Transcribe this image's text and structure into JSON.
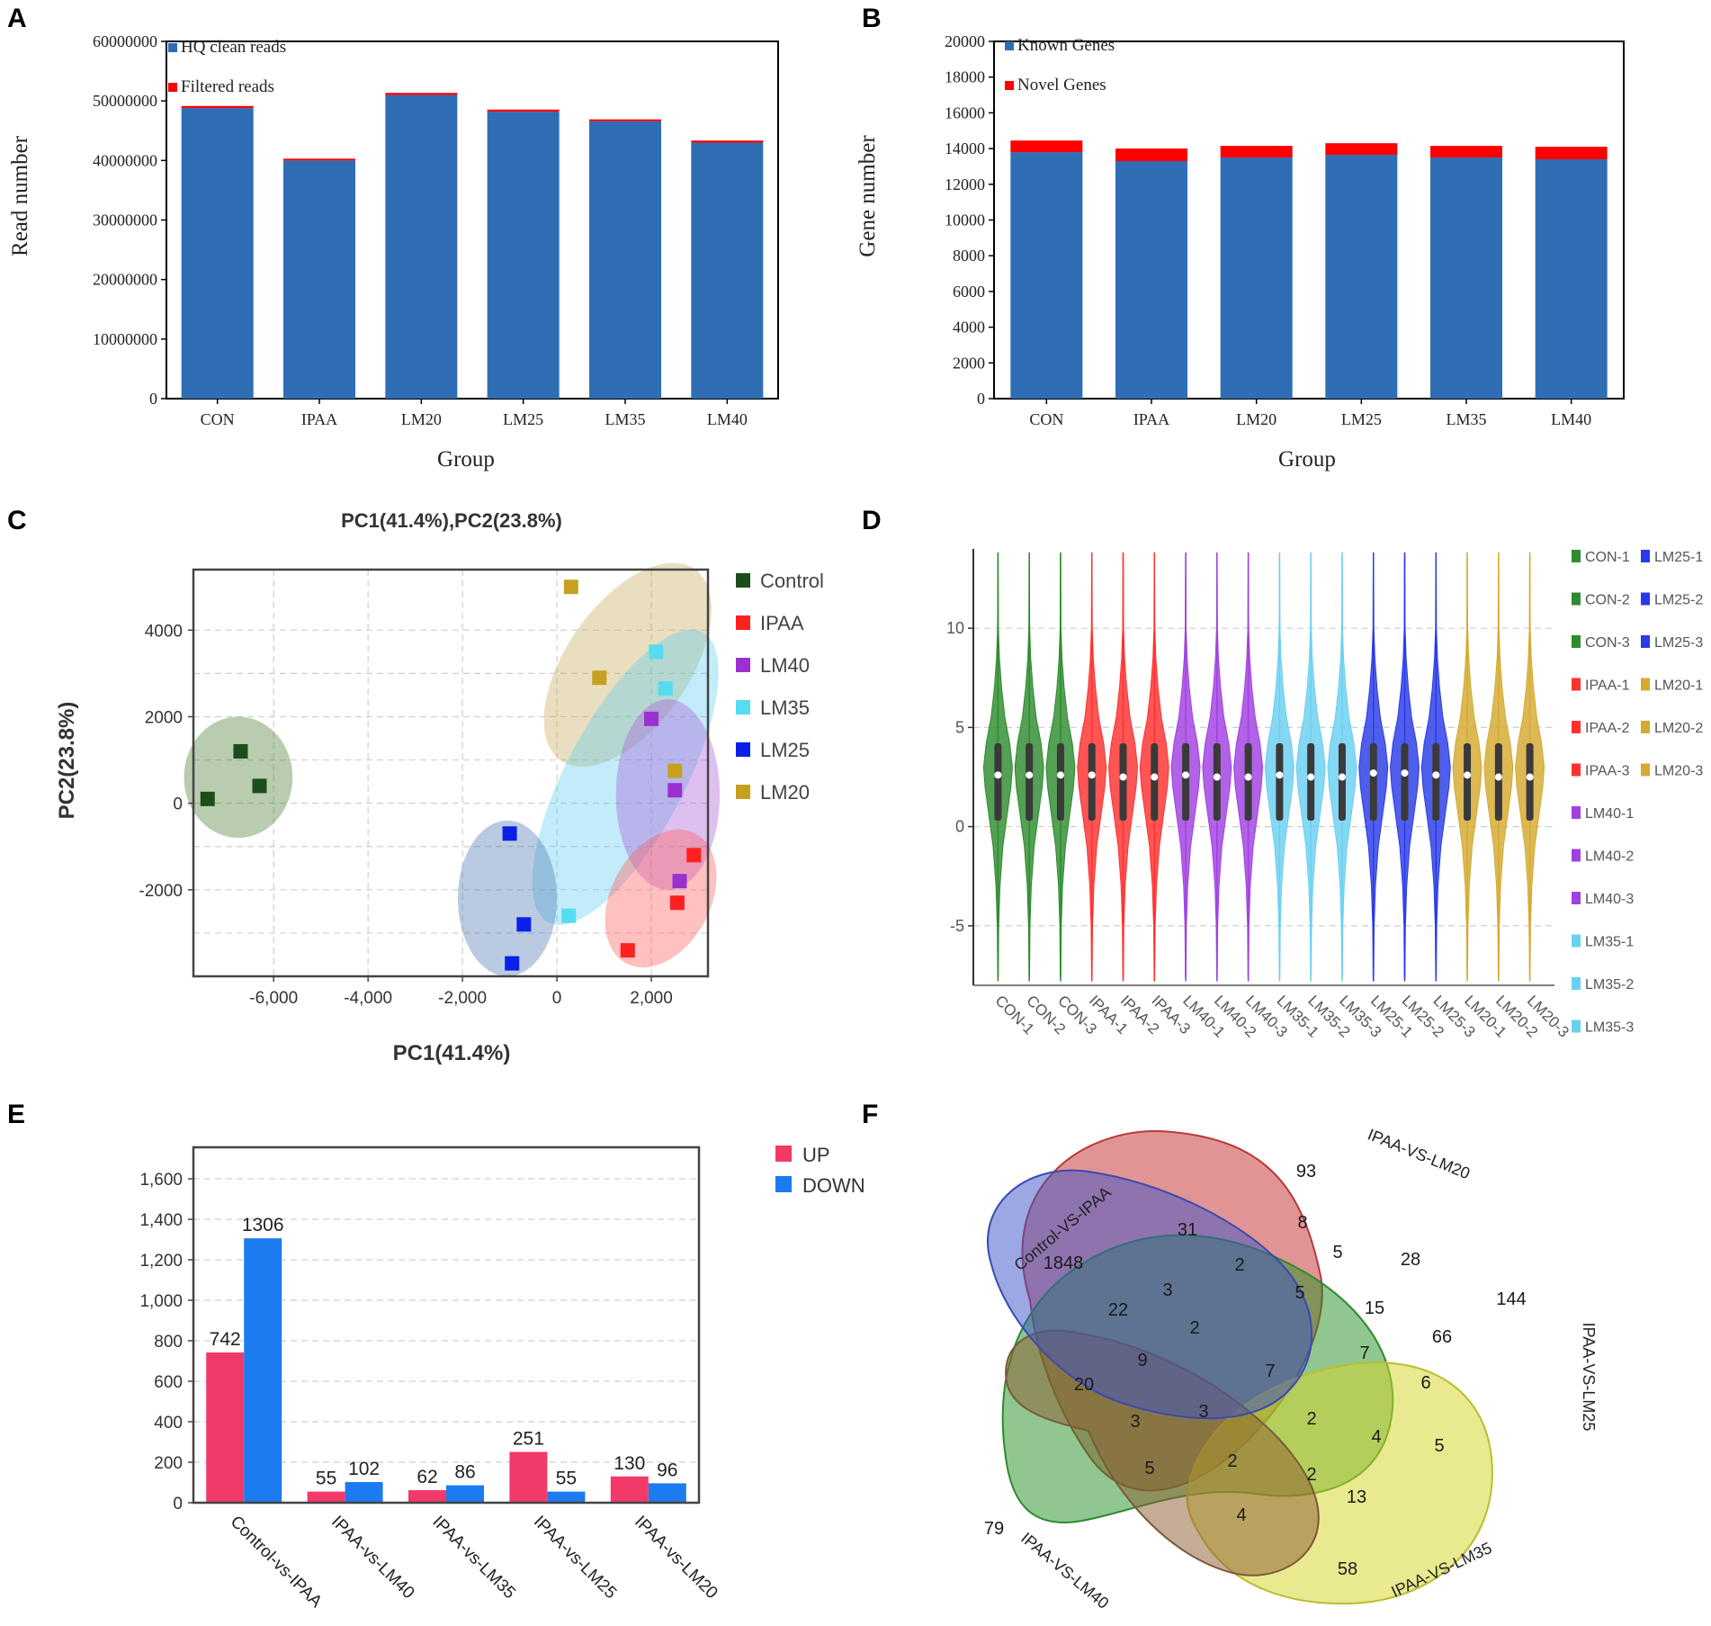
{
  "panels": {
    "A": "A",
    "B": "B",
    "C": "C",
    "D": "D",
    "E": "E",
    "F": "F"
  },
  "colors": {
    "blue": "#2f6db5",
    "red": "#ff0000",
    "control": "#1b4d1b",
    "ipaa": "#ff2020",
    "lm40": "#9b30d0",
    "lm35": "#55dcee",
    "lm25": "#0a20e8",
    "lm20": "#c8a020",
    "up": "#f23a6a",
    "down": "#1d7bf0"
  },
  "chart_data": [
    {
      "id": "A",
      "type": "bar",
      "stacked": true,
      "categories": [
        "CON",
        "IPAA",
        "LM20",
        "LM25",
        "LM35",
        "LM40"
      ],
      "series": [
        {
          "name": "HQ clean reads",
          "values": [
            48800000,
            40000000,
            51000000,
            48200000,
            46600000,
            43000000
          ]
        },
        {
          "name": "Filtered reads",
          "values": [
            350000,
            300000,
            350000,
            350000,
            300000,
            350000
          ]
        }
      ],
      "yticks": [
        "0",
        "10000000",
        "20000000",
        "30000000",
        "40000000",
        "50000000",
        "60000000"
      ],
      "ylim": [
        0,
        60000000
      ],
      "xlabel": "Group",
      "ylabel": "Read number",
      "legend": "top-left"
    },
    {
      "id": "B",
      "type": "bar",
      "stacked": true,
      "categories": [
        "CON",
        "IPAA",
        "LM20",
        "LM25",
        "LM35",
        "LM40"
      ],
      "series": [
        {
          "name": "Known Genes",
          "values": [
            13800,
            13300,
            13500,
            13650,
            13500,
            13400
          ]
        },
        {
          "name": "Novel Genes",
          "values": [
            650,
            700,
            650,
            650,
            650,
            700
          ]
        }
      ],
      "yticks": [
        "0",
        "2000",
        "4000",
        "6000",
        "8000",
        "10000",
        "12000",
        "14000",
        "16000",
        "18000",
        "20000"
      ],
      "ylim": [
        0,
        20000
      ],
      "xlabel": "Group",
      "ylabel": "Gene number",
      "legend": "top-left"
    },
    {
      "id": "C",
      "type": "scatter",
      "title": "PC1(41.4%),PC2(23.8%)",
      "xlabel": "PC1(41.4%)",
      "ylabel": "PC2(23.8%)",
      "xlim": [
        -7700,
        3200
      ],
      "ylim": [
        -4000,
        5400
      ],
      "xticks": [
        -6000,
        -4000,
        -2000,
        0,
        2000
      ],
      "xtick_labels": [
        "-6,000",
        "-4,000",
        "-2,000",
        "0",
        "2,000"
      ],
      "yticks": [
        4000,
        2000,
        0,
        -2000
      ],
      "ytick_labels": [
        "4000",
        "2000",
        "0",
        "-2000"
      ],
      "series": [
        {
          "name": "Control",
          "color": "#1b4d1b",
          "fill": "#4a7a30",
          "points": [
            [
              -6700,
              1200
            ],
            [
              -6300,
              400
            ],
            [
              -7400,
              100
            ]
          ]
        },
        {
          "name": "IPAA",
          "color": "#ff2020",
          "fill": "#ff5a5a",
          "points": [
            [
              2900,
              -1200
            ],
            [
              2550,
              -2300
            ],
            [
              1500,
              -3400
            ]
          ]
        },
        {
          "name": "LM40",
          "color": "#9b30d0",
          "fill": "#a85ad8",
          "points": [
            [
              2000,
              1950
            ],
            [
              2500,
              300
            ],
            [
              2600,
              -1800
            ]
          ]
        },
        {
          "name": "LM35",
          "color": "#55dcee",
          "fill": "#5ecdf0",
          "points": [
            [
              2100,
              3500
            ],
            [
              2300,
              2650
            ],
            [
              250,
              -2600
            ]
          ]
        },
        {
          "name": "LM25",
          "color": "#0a20e8",
          "fill": "#4a76b0",
          "points": [
            [
              -1000,
              -700
            ],
            [
              -700,
              -2800
            ],
            [
              -950,
              -3700
            ]
          ]
        },
        {
          "name": "LM20",
          "color": "#c8a020",
          "fill": "#c8a85a",
          "points": [
            [
              300,
              5000
            ],
            [
              900,
              2900
            ],
            [
              2500,
              750
            ]
          ]
        }
      ],
      "legend": "right"
    },
    {
      "id": "D",
      "type": "violin",
      "samples": [
        "CON-1",
        "CON-2",
        "CON-3",
        "IPAA-1",
        "IPAA-2",
        "IPAA-3",
        "LM40-1",
        "LM40-2",
        "LM40-3",
        "LM35-1",
        "LM35-2",
        "LM35-3",
        "LM25-1",
        "LM25-2",
        "LM25-3",
        "LM20-1",
        "LM20-2",
        "LM20-3"
      ],
      "colors": [
        "#2e8b2e",
        "#2e8b2e",
        "#2e8b2e",
        "#ff3030",
        "#ff3030",
        "#ff3030",
        "#a040e0",
        "#a040e0",
        "#a040e0",
        "#6ad0f0",
        "#6ad0f0",
        "#6ad0f0",
        "#2a3ae8",
        "#2a3ae8",
        "#2a3ae8",
        "#d4aa30",
        "#d4aa30",
        "#d4aa30"
      ],
      "medians": [
        2.6,
        2.6,
        2.6,
        2.6,
        2.5,
        2.5,
        2.6,
        2.5,
        2.5,
        2.6,
        2.5,
        2.5,
        2.7,
        2.7,
        2.6,
        2.6,
        2.5,
        2.5
      ],
      "ylim": [
        -8,
        14
      ],
      "yticks": [
        -5,
        0,
        5,
        10
      ],
      "ytick_labels": [
        "-5",
        "0",
        "5",
        "10"
      ],
      "legend_col1": [
        "CON-1",
        "CON-2",
        "CON-3",
        "IPAA-1",
        "IPAA-2",
        "IPAA-3",
        "LM40-1",
        "LM40-2",
        "LM40-3",
        "LM35-1",
        "LM35-2",
        "LM35-3"
      ],
      "legend_col2": [
        "LM25-1",
        "LM25-2",
        "LM25-3",
        "LM20-1",
        "LM20-2",
        "LM20-3"
      ]
    },
    {
      "id": "E",
      "type": "bar",
      "categories": [
        "Control-vs-IPAA",
        "IPAA-vs-LM40",
        "IPAA-vs-LM35",
        "IPAA-vs-LM25",
        "IPAA-vs-LM20"
      ],
      "series": [
        {
          "name": "UP",
          "values": [
            742,
            55,
            62,
            251,
            130
          ]
        },
        {
          "name": "DOWN",
          "values": [
            1306,
            102,
            86,
            55,
            96
          ]
        }
      ],
      "ylim": [
        0,
        1600
      ],
      "yticks": [
        0,
        200,
        400,
        600,
        800,
        1000,
        1200,
        1400,
        1600
      ],
      "ytick_labels": [
        "0",
        "200",
        "400",
        "600",
        "800",
        "1,000",
        "1,200",
        "1,400",
        "1,600"
      ],
      "legend": "top-right"
    },
    {
      "id": "F",
      "type": "venn",
      "sets": [
        "Control-VS-IPAA",
        "IPAA-VS-LM20",
        "IPAA-VS-LM25",
        "IPAA-VS-LM35",
        "IPAA-VS-LM40"
      ],
      "region_counts": [
        "93",
        "1848",
        "144",
        "79",
        "58",
        "31",
        "8",
        "5",
        "28",
        "2",
        "5",
        "15",
        "66",
        "3",
        "22",
        "2",
        "9",
        "7",
        "7",
        "6",
        "20",
        "3",
        "3",
        "2",
        "4",
        "5",
        "5",
        "2",
        "2",
        "13",
        "4"
      ]
    }
  ]
}
